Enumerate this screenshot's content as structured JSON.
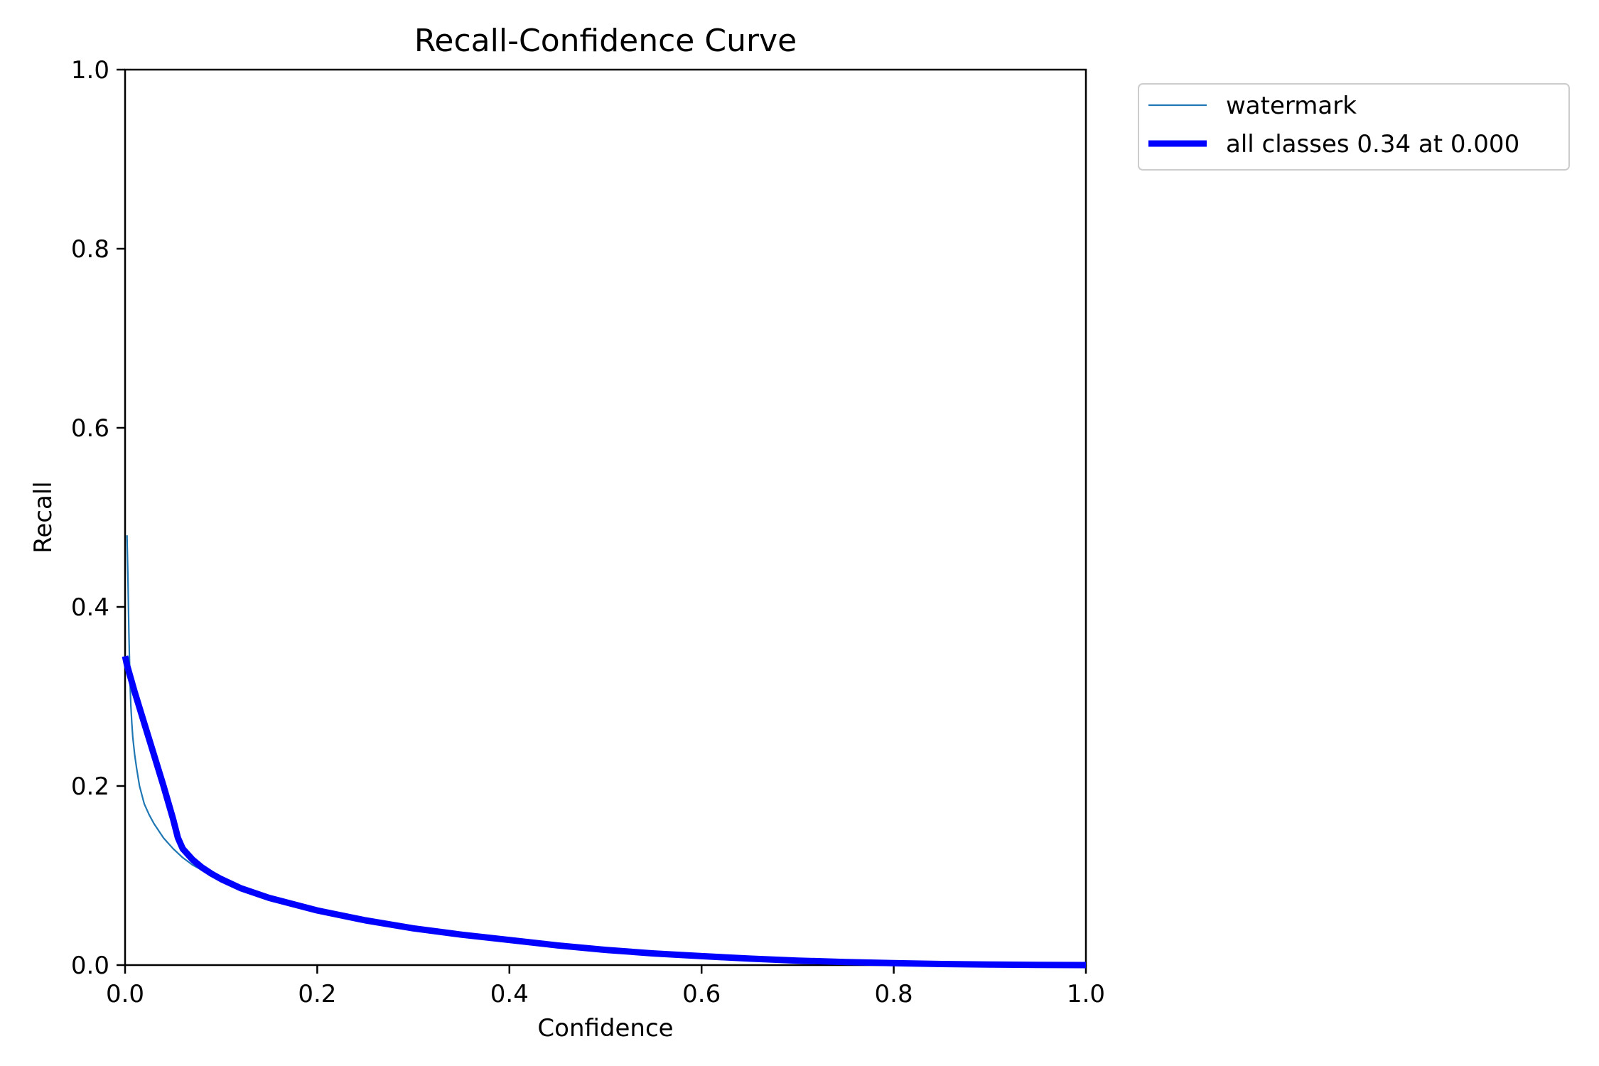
{
  "chart_data": {
    "type": "line",
    "title": "Recall-Confidence Curve",
    "xlabel": "Confidence",
    "ylabel": "Recall",
    "xlim": [
      0.0,
      1.0
    ],
    "ylim": [
      0.0,
      1.0
    ],
    "xticks": [
      0.0,
      0.2,
      0.4,
      0.6,
      0.8,
      1.0
    ],
    "yticks": [
      0.0,
      0.2,
      0.4,
      0.6,
      0.8,
      1.0
    ],
    "xtick_labels": [
      "0.0",
      "0.2",
      "0.4",
      "0.6",
      "0.8",
      "1.0"
    ],
    "ytick_labels": [
      "0.0",
      "0.2",
      "0.4",
      "0.6",
      "0.8",
      "1.0"
    ],
    "grid": false,
    "legend_position": "outside-top-right",
    "series": [
      {
        "name": "watermark",
        "color": "#1f77b4",
        "line_width": "thin",
        "x": [
          0.002,
          0.003,
          0.004,
          0.005,
          0.006,
          0.007,
          0.008,
          0.01,
          0.012,
          0.015,
          0.02,
          0.025,
          0.03,
          0.04,
          0.05,
          0.06,
          0.07,
          0.08,
          0.09,
          0.1,
          0.12,
          0.15,
          0.2,
          0.25,
          0.3,
          0.35,
          0.4,
          0.45,
          0.5,
          0.55,
          0.6,
          0.65,
          0.7,
          0.75,
          0.8,
          0.85,
          0.9,
          0.95,
          1.0
        ],
        "y": [
          0.48,
          0.43,
          0.37,
          0.32,
          0.29,
          0.27,
          0.255,
          0.235,
          0.22,
          0.2,
          0.18,
          0.168,
          0.158,
          0.142,
          0.13,
          0.12,
          0.112,
          0.106,
          0.1,
          0.094,
          0.084,
          0.073,
          0.06,
          0.049,
          0.04,
          0.033,
          0.027,
          0.021,
          0.016,
          0.012,
          0.009,
          0.0065,
          0.0045,
          0.003,
          0.002,
          0.0012,
          0.0006,
          0.0003,
          0.0
        ]
      },
      {
        "name": "all classes 0.34 at 0.000",
        "color": "#0000ff",
        "line_width": "thick",
        "x": [
          0.0,
          0.002,
          0.01,
          0.02,
          0.03,
          0.04,
          0.05,
          0.055,
          0.06,
          0.07,
          0.08,
          0.09,
          0.1,
          0.12,
          0.15,
          0.2,
          0.25,
          0.3,
          0.35,
          0.4,
          0.45,
          0.5,
          0.55,
          0.6,
          0.65,
          0.7,
          0.75,
          0.8,
          0.85,
          0.9,
          0.95,
          1.0
        ],
        "y": [
          0.345,
          0.335,
          0.305,
          0.27,
          0.235,
          0.2,
          0.163,
          0.142,
          0.13,
          0.118,
          0.109,
          0.102,
          0.096,
          0.086,
          0.075,
          0.061,
          0.05,
          0.041,
          0.034,
          0.028,
          0.022,
          0.017,
          0.013,
          0.01,
          0.0072,
          0.005,
          0.0034,
          0.0022,
          0.0012,
          0.0006,
          0.0002,
          0.0
        ]
      }
    ]
  }
}
